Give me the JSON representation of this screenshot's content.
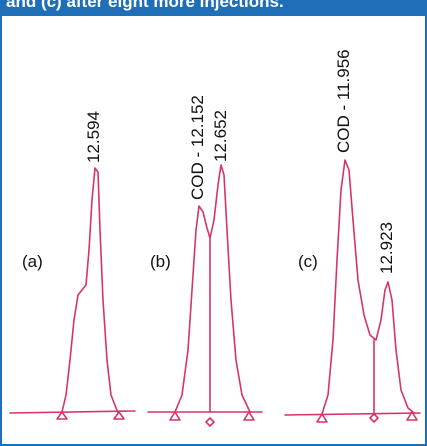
{
  "header": {
    "text": "and (c) after eight more injections."
  },
  "chart_data": {
    "type": "line",
    "panels": [
      {
        "label": "(a)",
        "peaks": [
          {
            "name": "12.594"
          }
        ]
      },
      {
        "label": "(b)",
        "peaks": [
          {
            "name": "COD - 12.152"
          },
          {
            "name": "12.652"
          }
        ]
      },
      {
        "label": "(c)",
        "peaks": [
          {
            "name": "COD - 11.956"
          },
          {
            "name": "12.923"
          }
        ]
      }
    ],
    "colors": {
      "trace": "#d6336c",
      "frame": "#1f6fb8"
    }
  }
}
